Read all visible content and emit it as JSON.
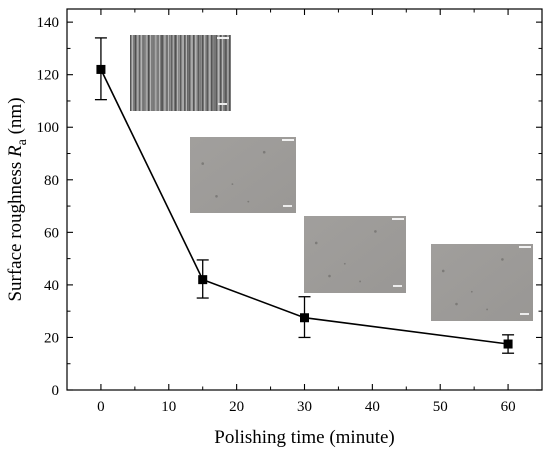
{
  "chart_data": {
    "type": "line",
    "xlabel": "Polishing time (minute)",
    "ylabel": {
      "main": "Surface roughness ",
      "symbol": "R",
      "subscript": "a",
      "unit": " (nm)"
    },
    "xlim": [
      -5,
      65
    ],
    "ylim": [
      0,
      145
    ],
    "xticks": [
      0,
      10,
      20,
      30,
      40,
      50,
      60
    ],
    "yticks": [
      0,
      20,
      40,
      60,
      80,
      100,
      120,
      140
    ],
    "series": [
      {
        "x": [
          0,
          15,
          30,
          60
        ],
        "y": [
          122,
          42,
          27.5,
          17.5
        ],
        "err_low": [
          110.5,
          35,
          20,
          14
        ],
        "err_high": [
          134,
          49.5,
          35.5,
          21
        ],
        "color": "#000000",
        "marker": "square"
      }
    ],
    "insets": [
      {
        "image": "micrograph-rough-surface",
        "tone": "#8a8a8a"
      },
      {
        "image": "micrograph-smooth-surface",
        "tone": "#9e9c99"
      },
      {
        "image": "micrograph-smooth-surface",
        "tone": "#9d9b98"
      },
      {
        "image": "micrograph-smooth-surface",
        "tone": "#9c9a97"
      }
    ]
  }
}
